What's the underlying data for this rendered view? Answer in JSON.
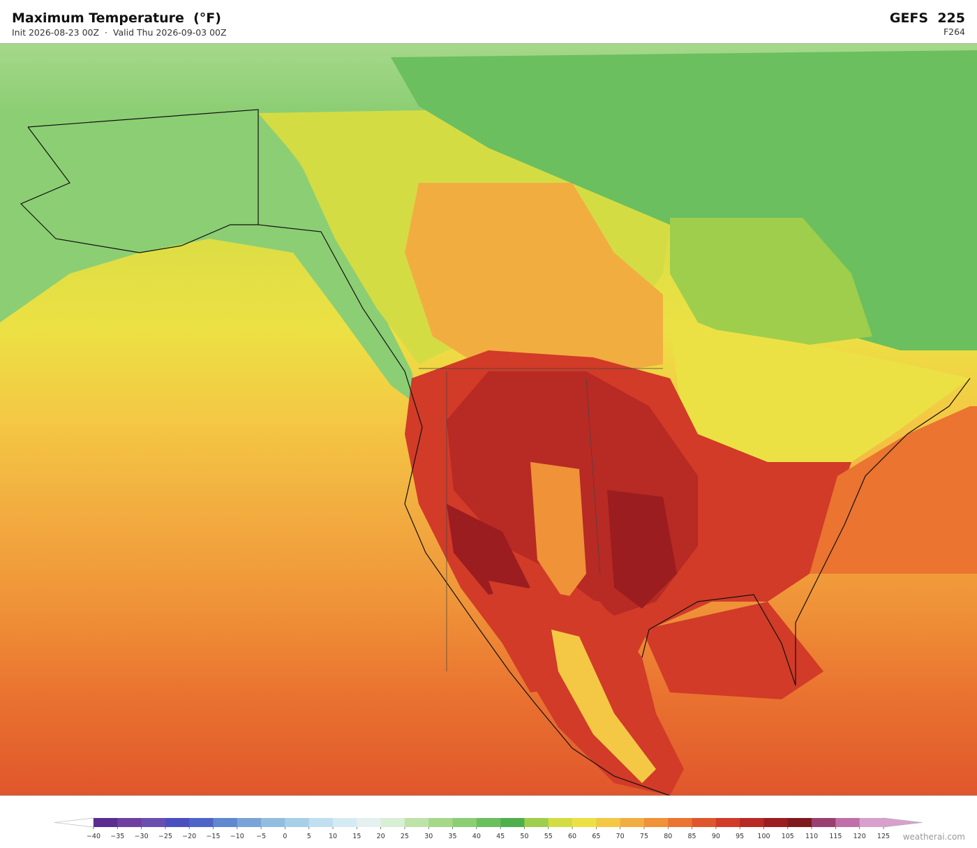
{
  "header": {
    "title": "Maximum Temperature  (°F)",
    "subtitle": "Init 2026-08-23 00Z  ·  Valid Thu 2026-09-03 00Z",
    "model": "GEFS  225",
    "forecast_hour": "F264"
  },
  "colorbar": {
    "ticks": [
      {
        "value": -40,
        "label": "−40"
      },
      {
        "value": -35,
        "label": "−35"
      },
      {
        "value": -30,
        "label": "−30"
      },
      {
        "value": -25,
        "label": "−25"
      },
      {
        "value": -20,
        "label": "−20"
      },
      {
        "value": -15,
        "label": "−15"
      },
      {
        "value": -10,
        "label": "−10"
      },
      {
        "value": -5,
        "label": "−5"
      },
      0,
      5,
      10,
      15,
      20,
      25,
      30,
      35,
      40,
      45,
      50,
      55,
      60,
      65,
      70,
      75,
      80,
      85,
      90,
      95,
      100,
      105,
      110,
      115,
      120,
      125
    ],
    "colors": [
      "#5a2d91",
      "#6e3fa0",
      "#6a4fb0",
      "#4a4fc0",
      "#4e64c8",
      "#5f88d0",
      "#7aa3d8",
      "#93bde0",
      "#a8cfe8",
      "#c0dff0",
      "#d5ebf3",
      "#e4f1ee",
      "#d8eed5",
      "#bfe2a8",
      "#a6d88a",
      "#8cce74",
      "#6bbf5e",
      "#4faf4c",
      "#9fce4c",
      "#d4dc44",
      "#ece144",
      "#f4c844",
      "#f2ad40",
      "#ef9238",
      "#ea7430",
      "#e0562c",
      "#d13b28",
      "#b82a24",
      "#9b1d20",
      "#7e1a1e",
      "#9a4070",
      "#c070a8",
      "#d8a0cc"
    ],
    "under_color": "#ffffff",
    "over_color": "#d8a0cc"
  },
  "watermark": "weatherai.com"
}
